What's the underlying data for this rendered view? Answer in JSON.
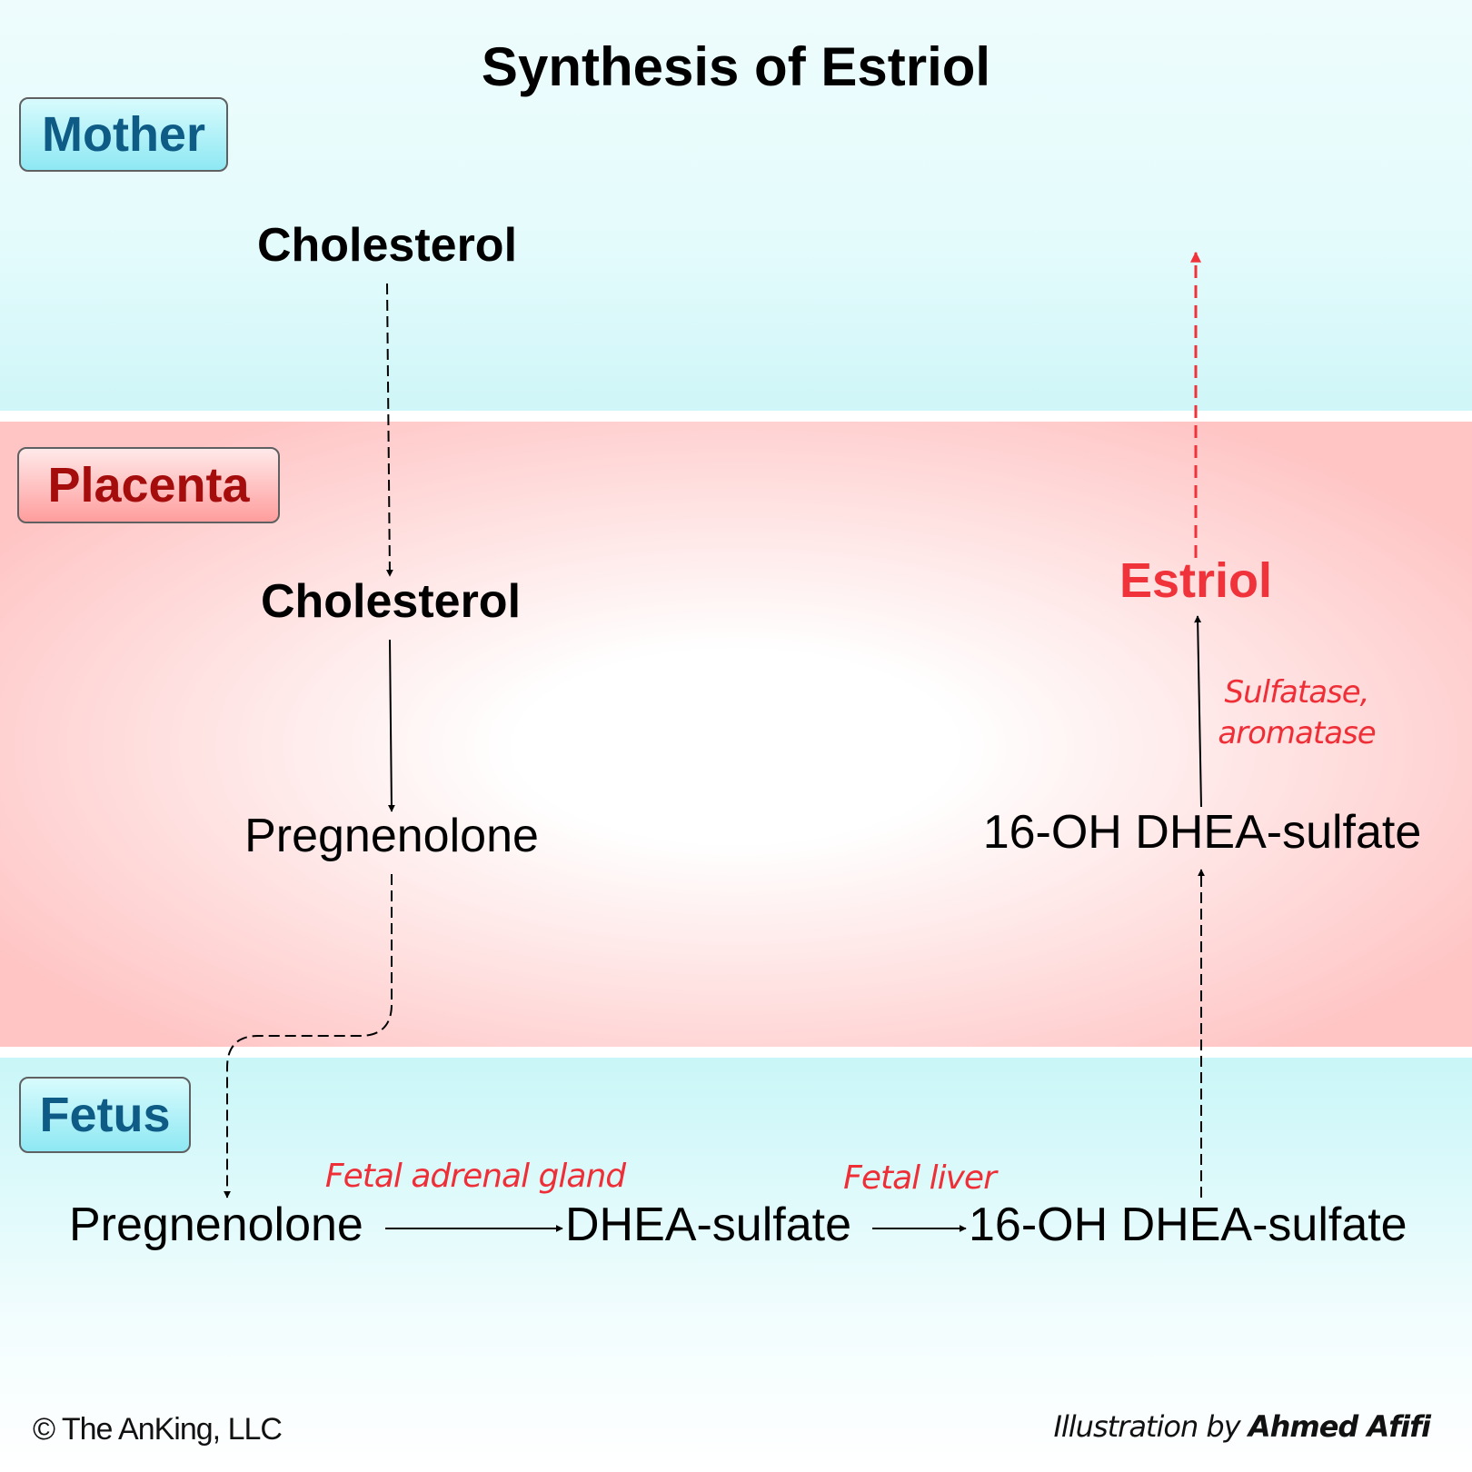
{
  "title": "Synthesis of Estriol",
  "regions": {
    "mother": "Mother",
    "placenta": "Placenta",
    "fetus": "Fetus"
  },
  "nodes": {
    "mother_cholesterol": "Cholesterol",
    "placenta_cholesterol": "Cholesterol",
    "placenta_pregnenolone": "Pregnenolone",
    "placenta_16oh_dhea_sulfate": "16-OH DHEA-sulfate",
    "placenta_estriol": "Estriol",
    "fetus_pregnenolone": "Pregnenolone",
    "fetus_dhea_sulfate": "DHEA-sulfate",
    "fetus_16oh_dhea_sulfate": "16-OH DHEA-sulfate"
  },
  "enzymes": {
    "placenta_line1": "Sulfatase,",
    "placenta_line2": "aromatase",
    "fetal_adrenal": "Fetal adrenal gland",
    "fetal_liver": "Fetal liver"
  },
  "credits": {
    "copyright": "© The AnKing, LLC",
    "illustration_prefix": "Illustration by ",
    "illustrator": "Ahmed Afifi"
  },
  "colors": {
    "mother_band": "#e4fbfc",
    "placenta_band": "#ffc4c4",
    "fetus_band": "#c9f6f8",
    "mother_fetus_label": "#0e5c86",
    "placenta_label": "#a50d0d",
    "accent_red": "#f0323a"
  }
}
